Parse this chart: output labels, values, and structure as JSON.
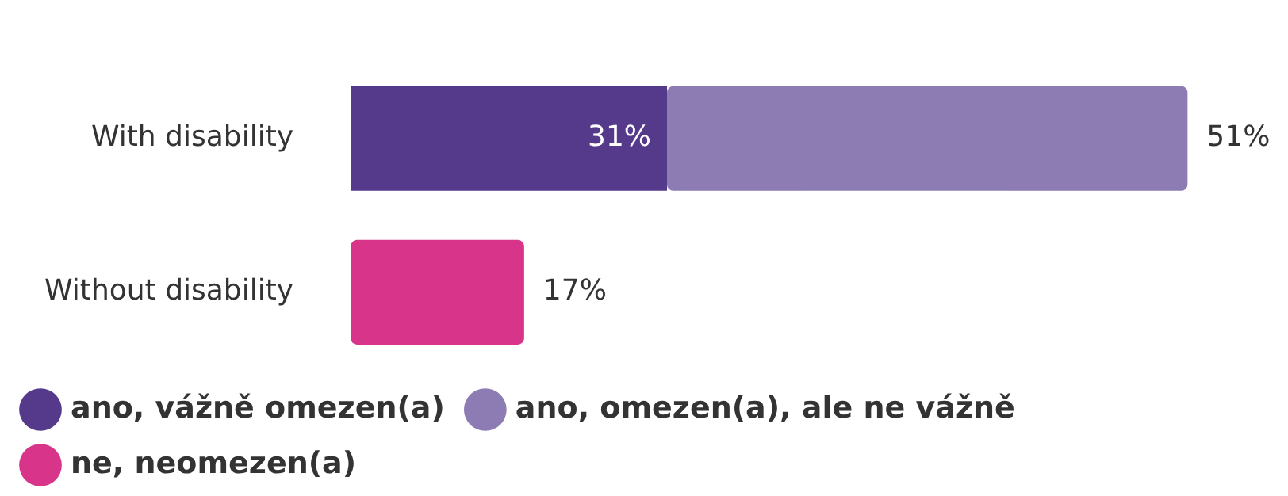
{
  "chart_data": {
    "type": "bar",
    "orientation": "horizontal",
    "stacked": true,
    "categories": [
      "With disability",
      "Without disability"
    ],
    "series": [
      {
        "name": "ano, vážně omezen(a)",
        "color": "#553a8c",
        "values": [
          31,
          null
        ],
        "value_labels": [
          "31%",
          null
        ]
      },
      {
        "name": "ano, omezen(a), ale ne vážně",
        "color": "#8d7bb4",
        "values": [
          51,
          null
        ],
        "value_labels": [
          "51%",
          null
        ]
      },
      {
        "name": "ne, neomezen(a)",
        "color": "#d83489",
        "values": [
          null,
          17
        ],
        "value_labels": [
          null,
          "17%"
        ]
      }
    ],
    "legend": "bottom"
  }
}
